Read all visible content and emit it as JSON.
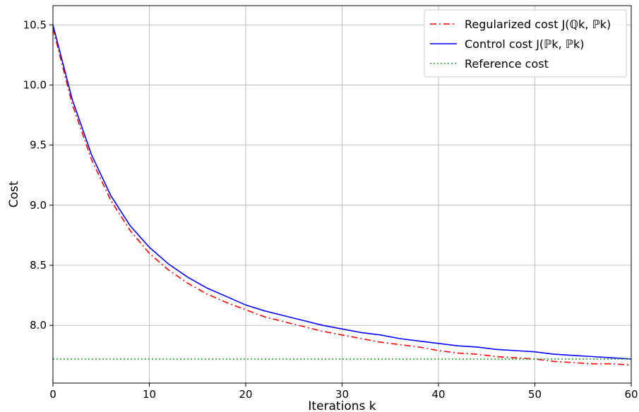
{
  "chart_data": {
    "type": "line",
    "title": "",
    "xlabel": "Iterations k",
    "ylabel": "Cost",
    "xlim": [
      0,
      60
    ],
    "ylim": [
      7.52,
      10.66
    ],
    "grid": true,
    "legend_position": "upper right",
    "x_ticks": [
      "0",
      "10",
      "20",
      "30",
      "40",
      "50",
      "60"
    ],
    "y_ticks": [
      "8.0",
      "8.5",
      "9.0",
      "9.5",
      "10.0",
      "10.5"
    ],
    "x": [
      0,
      2,
      4,
      6,
      8,
      10,
      12,
      14,
      16,
      18,
      20,
      22,
      24,
      26,
      28,
      30,
      32,
      34,
      36,
      38,
      40,
      42,
      44,
      46,
      48,
      50,
      52,
      54,
      56,
      58,
      60
    ],
    "series": [
      {
        "name": "Regularized cost J(ℚk, ℙk)",
        "color": "#ff0000",
        "dash": "dashdot",
        "values": [
          10.47,
          9.84,
          9.38,
          9.04,
          8.79,
          8.6,
          8.46,
          8.35,
          8.26,
          8.19,
          8.13,
          8.07,
          8.03,
          7.99,
          7.95,
          7.92,
          7.89,
          7.86,
          7.84,
          7.82,
          7.79,
          7.77,
          7.76,
          7.74,
          7.73,
          7.72,
          7.7,
          7.69,
          7.68,
          7.68,
          7.67
        ]
      },
      {
        "name": "Control cost J(ℙk, ℙk)",
        "color": "#0000ff",
        "dash": "solid",
        "values": [
          10.5,
          9.88,
          9.42,
          9.08,
          8.83,
          8.65,
          8.51,
          8.4,
          8.31,
          8.24,
          8.17,
          8.12,
          8.08,
          8.04,
          8.0,
          7.97,
          7.94,
          7.92,
          7.89,
          7.87,
          7.85,
          7.83,
          7.82,
          7.8,
          7.79,
          7.78,
          7.76,
          7.75,
          7.74,
          7.73,
          7.72
        ]
      },
      {
        "name": "Reference cost",
        "color": "#2ca02c",
        "dash": "dotted",
        "values": [
          7.72,
          7.72,
          7.72,
          7.72,
          7.72,
          7.72,
          7.72,
          7.72,
          7.72,
          7.72,
          7.72,
          7.72,
          7.72,
          7.72,
          7.72,
          7.72,
          7.72,
          7.72,
          7.72,
          7.72,
          7.72,
          7.72,
          7.72,
          7.72,
          7.72,
          7.72,
          7.72,
          7.72,
          7.72,
          7.72,
          7.72
        ]
      }
    ]
  }
}
